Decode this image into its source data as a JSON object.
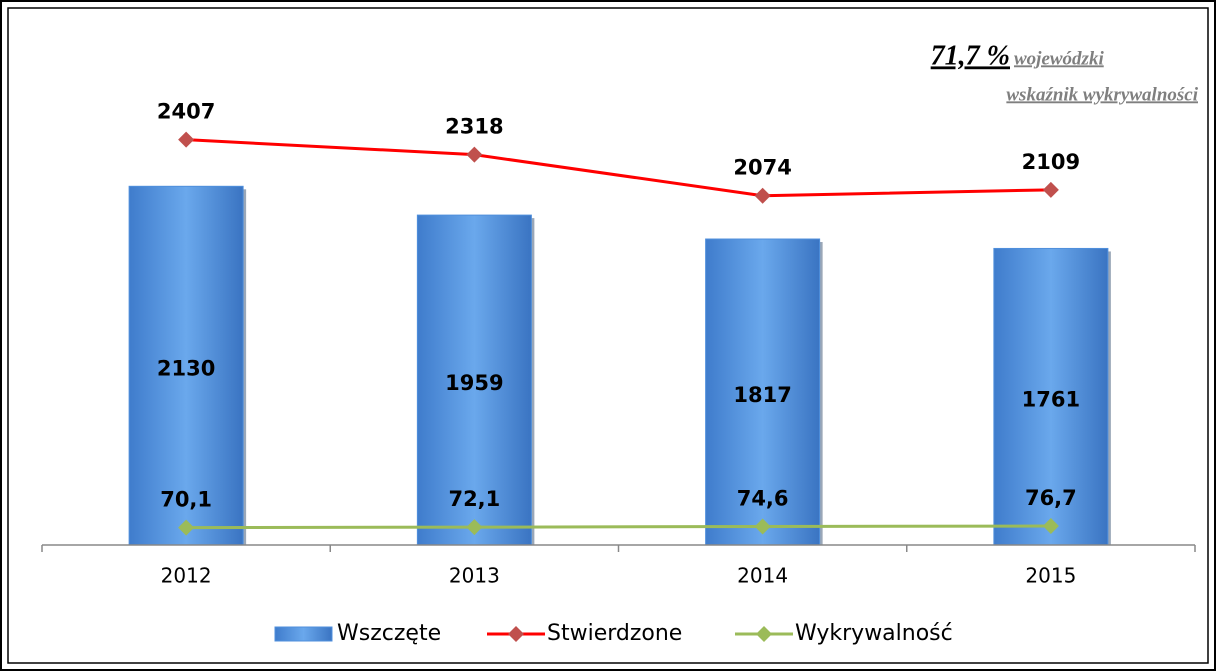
{
  "chart_data": {
    "type": "bar",
    "categories": [
      "2012",
      "2013",
      "2014",
      "2015"
    ],
    "series": [
      {
        "name": "Wszczęte",
        "type": "bar",
        "color": "#4f8fdc",
        "values": [
          2130,
          1959,
          1817,
          1761
        ]
      },
      {
        "name": "Stwierdzone",
        "type": "line",
        "color": "#ff0000",
        "marker_color": "#c0504d",
        "values": [
          2407,
          2318,
          2074,
          2109
        ]
      },
      {
        "name": "Wykrywalność",
        "type": "line",
        "axis": "y2",
        "color": "#9bbb59",
        "marker_color": "#9bbb59",
        "values": [
          70.1,
          72.1,
          74.6,
          76.7
        ],
        "value_labels": [
          "70,1",
          "72,1",
          "74,6",
          "76,7"
        ]
      }
    ],
    "ylim": [
      0,
      2500
    ],
    "y2lim": [
      0,
      1700
    ],
    "legend": "bottom",
    "annotations": [
      "71,7 %",
      "wojewódzki",
      "wskaźnik wykrywalności"
    ]
  }
}
